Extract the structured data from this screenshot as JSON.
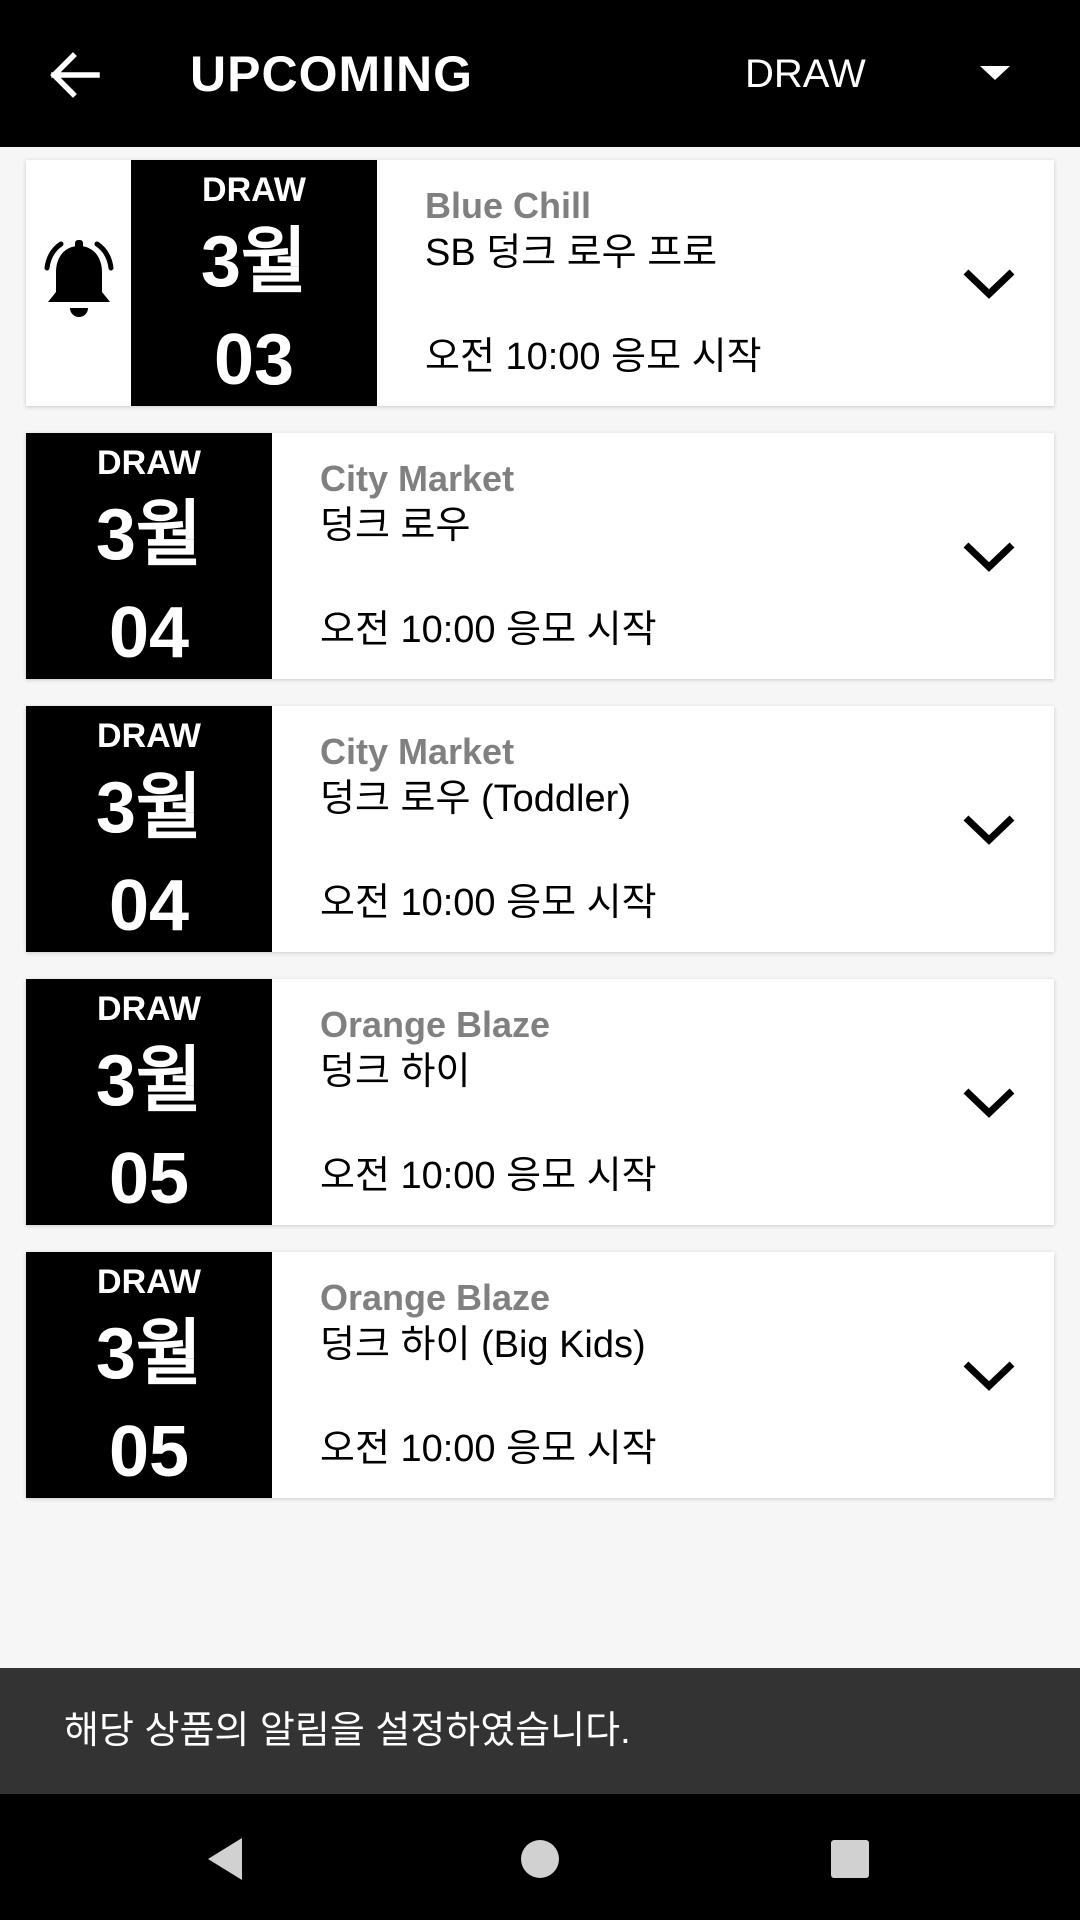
{
  "header": {
    "title": "UPCOMING",
    "filter_value": "DRAW",
    "back_icon": "arrow-left-icon",
    "dropdown_icon": "caret-down-icon"
  },
  "items": [
    {
      "type": "DRAW",
      "month": "3월",
      "day": "03",
      "color_name": "Blue Chill",
      "product": "SB 덩크 로우 프로",
      "time": "오전 10:00 응모 시작",
      "notify_on": true
    },
    {
      "type": "DRAW",
      "month": "3월",
      "day": "04",
      "color_name": "City Market",
      "product": "덩크 로우",
      "time": "오전 10:00 응모 시작",
      "notify_on": false
    },
    {
      "type": "DRAW",
      "month": "3월",
      "day": "04",
      "color_name": "City Market",
      "product": "덩크 로우 (Toddler)",
      "time": "오전 10:00 응모 시작",
      "notify_on": false
    },
    {
      "type": "DRAW",
      "month": "3월",
      "day": "05",
      "color_name": "Orange Blaze",
      "product": "덩크 하이",
      "time": "오전 10:00 응모 시작",
      "notify_on": false
    },
    {
      "type": "DRAW",
      "month": "3월",
      "day": "05",
      "color_name": "Orange Blaze",
      "product": "덩크 하이 (Big Kids)",
      "time": "오전 10:00 응모 시작",
      "notify_on": false
    }
  ],
  "snackbar": {
    "message": "해당 상품의 알림을 설정하였습니다."
  },
  "colors": {
    "header_bg": "#000000",
    "date_bg": "#000000",
    "color_name_text": "#808080",
    "snackbar_bg": "#333333"
  }
}
